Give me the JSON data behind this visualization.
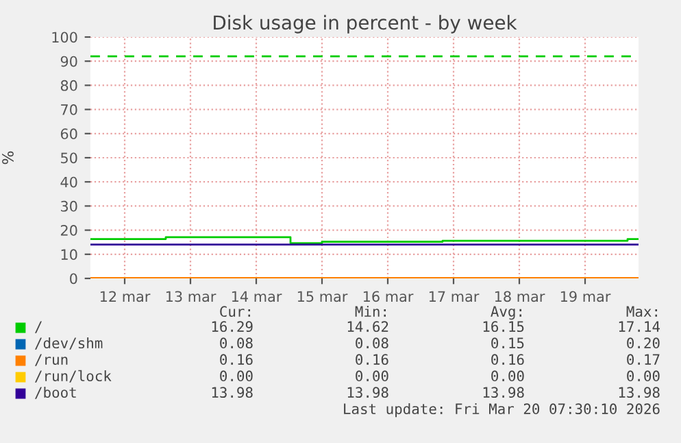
{
  "chart_data": {
    "type": "step",
    "title": "Disk usage in percent - by week",
    "ylabel": "%",
    "xlim": [
      "2026-03-11T23:30",
      "2026-03-20T07:30"
    ],
    "xticks": [
      {
        "value": "2026-03-12T12:00",
        "label": "12 mar"
      },
      {
        "value": "2026-03-13T12:00",
        "label": "13 mar"
      },
      {
        "value": "2026-03-14T12:00",
        "label": "14 mar"
      },
      {
        "value": "2026-03-15T12:00",
        "label": "15 mar"
      },
      {
        "value": "2026-03-16T12:00",
        "label": "16 mar"
      },
      {
        "value": "2026-03-17T12:00",
        "label": "17 mar"
      },
      {
        "value": "2026-03-18T12:00",
        "label": "18 mar"
      },
      {
        "value": "2026-03-19T12:00",
        "label": "19 mar"
      }
    ],
    "ylim": [
      0,
      100
    ],
    "yticks": [
      0,
      10,
      20,
      30,
      40,
      50,
      60,
      70,
      80,
      90,
      100
    ],
    "grid": true,
    "legend": "bottom",
    "series": [
      {
        "name": "/",
        "color": "#00cc00",
        "x": [
          "2026-03-11T23:30",
          "2026-03-13T03:00",
          "2026-03-15T00:30",
          "2026-03-15T12:00",
          "2026-03-17T08:00",
          "2026-03-20T03:30",
          "2026-03-20T07:30"
        ],
        "values": [
          16.3,
          17.1,
          14.6,
          15.2,
          15.6,
          16.3,
          16.3
        ]
      },
      {
        "name": "/dev/shm",
        "color": "#0066b3"
      },
      {
        "name": "/run",
        "color": "#ff8000",
        "x": [
          "2026-03-11T23:30",
          "2026-03-20T07:30"
        ],
        "values": [
          0.2,
          0.2
        ]
      },
      {
        "name": "/run/lock",
        "color": "#ffcc00"
      },
      {
        "name": "/boot",
        "color": "#330099",
        "x": [
          "2026-03-11T23:30",
          "2026-03-20T07:30"
        ],
        "values": [
          14.0,
          14.0
        ]
      }
    ],
    "ref_lines": [
      {
        "axis": "y",
        "value": 92,
        "color": "#00cc00",
        "line_style": "dashed"
      }
    ],
    "annotations": [
      "Cur:",
      "Min:",
      "Avg:",
      "Max:",
      "16.29",
      "14.62",
      "16.15",
      "17.14",
      "0.08",
      "0.08",
      "0.15",
      "0.20",
      "0.16",
      "0.16",
      "0.16",
      "0.17",
      "0.00",
      "0.00",
      "0.00",
      "0.00",
      "13.98",
      "13.98",
      "13.98",
      "13.98",
      "Last update: Fri Mar 20 07:30:10 2026"
    ]
  }
}
